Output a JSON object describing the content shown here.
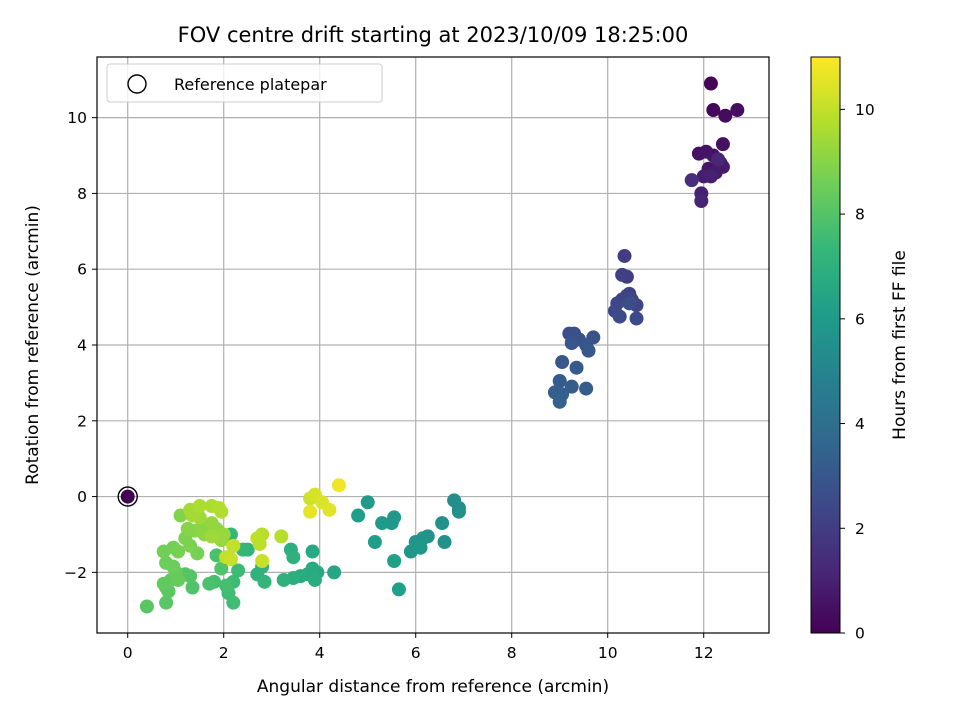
{
  "chart_data": {
    "type": "scatter",
    "title": "FOV centre drift starting at 2023/10/09 18:25:00",
    "xlabel": "Angular distance from reference (arcmin)",
    "ylabel": "Rotation from reference (arcmin)",
    "xlim": [
      -0.64,
      13.36
    ],
    "ylim": [
      -3.6,
      11.6
    ],
    "xticks": [
      0,
      2,
      4,
      6,
      8,
      10,
      12
    ],
    "yticks": [
      -2,
      0,
      2,
      4,
      6,
      8,
      10
    ],
    "grid": true,
    "legend": {
      "placement": "top-left",
      "entries": [
        "Reference platepar"
      ]
    },
    "colorbar": {
      "label": "Hours from first FF file",
      "range": [
        0,
        11
      ],
      "ticks": [
        0,
        2,
        4,
        6,
        8,
        10
      ],
      "colormap": "viridis"
    },
    "reference_point": {
      "x": 0,
      "y": 0,
      "h": 0
    },
    "points": [
      {
        "x": 12.15,
        "y": 10.9,
        "h": 0.1
      },
      {
        "x": 12.2,
        "y": 10.2,
        "h": 0.2
      },
      {
        "x": 12.45,
        "y": 10.05,
        "h": 0.3
      },
      {
        "x": 12.7,
        "y": 10.2,
        "h": 0.4
      },
      {
        "x": 12.4,
        "y": 9.3,
        "h": 0.5
      },
      {
        "x": 11.9,
        "y": 9.05,
        "h": 0.5
      },
      {
        "x": 12.05,
        "y": 9.1,
        "h": 0.6
      },
      {
        "x": 12.2,
        "y": 9.0,
        "h": 0.6
      },
      {
        "x": 12.35,
        "y": 8.8,
        "h": 0.7
      },
      {
        "x": 12.1,
        "y": 8.65,
        "h": 0.7
      },
      {
        "x": 12.25,
        "y": 8.55,
        "h": 0.8
      },
      {
        "x": 12.4,
        "y": 8.7,
        "h": 0.8
      },
      {
        "x": 12.0,
        "y": 8.45,
        "h": 0.9
      },
      {
        "x": 12.15,
        "y": 8.45,
        "h": 1.0
      },
      {
        "x": 11.95,
        "y": 8.0,
        "h": 1.0
      },
      {
        "x": 11.95,
        "y": 7.8,
        "h": 1.1
      },
      {
        "x": 12.3,
        "y": 8.9,
        "h": 1.2
      },
      {
        "x": 11.75,
        "y": 8.35,
        "h": 1.4
      },
      {
        "x": 10.35,
        "y": 6.35,
        "h": 2.0
      },
      {
        "x": 10.4,
        "y": 5.8,
        "h": 2.0
      },
      {
        "x": 10.3,
        "y": 5.85,
        "h": 2.1
      },
      {
        "x": 10.45,
        "y": 5.35,
        "h": 2.1
      },
      {
        "x": 10.3,
        "y": 5.2,
        "h": 2.2
      },
      {
        "x": 10.4,
        "y": 5.3,
        "h": 2.2
      },
      {
        "x": 10.5,
        "y": 5.2,
        "h": 2.3
      },
      {
        "x": 10.6,
        "y": 5.05,
        "h": 2.3
      },
      {
        "x": 10.2,
        "y": 5.1,
        "h": 2.4
      },
      {
        "x": 10.15,
        "y": 4.9,
        "h": 2.4
      },
      {
        "x": 10.25,
        "y": 4.75,
        "h": 2.5
      },
      {
        "x": 10.6,
        "y": 4.7,
        "h": 2.5
      },
      {
        "x": 10.45,
        "y": 5.1,
        "h": 2.6
      },
      {
        "x": 9.2,
        "y": 4.3,
        "h": 2.7
      },
      {
        "x": 9.3,
        "y": 4.3,
        "h": 2.7
      },
      {
        "x": 9.4,
        "y": 4.15,
        "h": 2.8
      },
      {
        "x": 9.7,
        "y": 4.2,
        "h": 2.8
      },
      {
        "x": 9.25,
        "y": 4.05,
        "h": 2.9
      },
      {
        "x": 9.55,
        "y": 4.0,
        "h": 2.9
      },
      {
        "x": 9.6,
        "y": 3.85,
        "h": 3.0
      },
      {
        "x": 9.05,
        "y": 3.55,
        "h": 3.0
      },
      {
        "x": 9.35,
        "y": 3.4,
        "h": 3.1
      },
      {
        "x": 9.0,
        "y": 3.05,
        "h": 3.1
      },
      {
        "x": 9.25,
        "y": 2.9,
        "h": 3.2
      },
      {
        "x": 9.55,
        "y": 2.85,
        "h": 3.2
      },
      {
        "x": 8.9,
        "y": 2.75,
        "h": 3.3
      },
      {
        "x": 9.05,
        "y": 2.7,
        "h": 3.3
      },
      {
        "x": 9.0,
        "y": 2.5,
        "h": 3.4
      },
      {
        "x": 6.8,
        "y": -0.1,
        "h": 5.4
      },
      {
        "x": 6.9,
        "y": -0.3,
        "h": 5.4
      },
      {
        "x": 6.9,
        "y": -0.4,
        "h": 5.5
      },
      {
        "x": 6.55,
        "y": -0.7,
        "h": 5.5
      },
      {
        "x": 6.6,
        "y": -1.2,
        "h": 5.6
      },
      {
        "x": 6.25,
        "y": -1.05,
        "h": 5.6
      },
      {
        "x": 6.15,
        "y": -1.1,
        "h": 5.7
      },
      {
        "x": 6.0,
        "y": -1.2,
        "h": 5.7
      },
      {
        "x": 6.1,
        "y": -1.35,
        "h": 5.8
      },
      {
        "x": 5.9,
        "y": -1.45,
        "h": 5.8
      },
      {
        "x": 5.55,
        "y": -0.55,
        "h": 5.9
      },
      {
        "x": 5.5,
        "y": -0.7,
        "h": 5.9
      },
      {
        "x": 5.3,
        "y": -0.7,
        "h": 6.0
      },
      {
        "x": 5.0,
        "y": -0.15,
        "h": 6.0
      },
      {
        "x": 4.8,
        "y": -0.5,
        "h": 6.1
      },
      {
        "x": 5.15,
        "y": -1.2,
        "h": 6.1
      },
      {
        "x": 5.55,
        "y": -1.7,
        "h": 6.2
      },
      {
        "x": 5.65,
        "y": -2.45,
        "h": 6.2
      },
      {
        "x": 4.3,
        "y": -2.0,
        "h": 6.5
      },
      {
        "x": 3.95,
        "y": -2.0,
        "h": 6.6
      },
      {
        "x": 3.85,
        "y": -1.45,
        "h": 6.6
      },
      {
        "x": 3.75,
        "y": -2.05,
        "h": 6.7
      },
      {
        "x": 3.85,
        "y": -1.9,
        "h": 6.7
      },
      {
        "x": 3.9,
        "y": -2.2,
        "h": 6.8
      },
      {
        "x": 3.6,
        "y": -2.1,
        "h": 6.8
      },
      {
        "x": 3.45,
        "y": -2.15,
        "h": 6.9
      },
      {
        "x": 3.4,
        "y": -1.4,
        "h": 6.9
      },
      {
        "x": 3.45,
        "y": -1.6,
        "h": 7.0
      },
      {
        "x": 3.25,
        "y": -2.2,
        "h": 7.0
      },
      {
        "x": 2.8,
        "y": -1.85,
        "h": 7.1
      },
      {
        "x": 2.7,
        "y": -2.05,
        "h": 7.1
      },
      {
        "x": 2.85,
        "y": -2.25,
        "h": 7.2
      },
      {
        "x": 2.5,
        "y": -1.4,
        "h": 7.2
      },
      {
        "x": 2.4,
        "y": -1.4,
        "h": 7.3
      },
      {
        "x": 2.15,
        "y": -1.0,
        "h": 7.3
      },
      {
        "x": 2.2,
        "y": -1.3,
        "h": 7.4
      },
      {
        "x": 2.3,
        "y": -1.95,
        "h": 7.5
      },
      {
        "x": 2.2,
        "y": -2.25,
        "h": 7.5
      },
      {
        "x": 2.1,
        "y": -2.55,
        "h": 7.6
      },
      {
        "x": 2.2,
        "y": -2.8,
        "h": 7.6
      },
      {
        "x": 2.05,
        "y": -2.35,
        "h": 7.7
      },
      {
        "x": 1.8,
        "y": -2.25,
        "h": 7.7
      },
      {
        "x": 1.7,
        "y": -2.3,
        "h": 7.8
      },
      {
        "x": 1.85,
        "y": -1.55,
        "h": 7.8
      },
      {
        "x": 1.95,
        "y": -1.9,
        "h": 7.9
      },
      {
        "x": 1.35,
        "y": -2.4,
        "h": 7.9
      },
      {
        "x": 1.3,
        "y": -2.1,
        "h": 8.0
      },
      {
        "x": 1.2,
        "y": -2.05,
        "h": 8.0
      },
      {
        "x": 0.4,
        "y": -2.9,
        "h": 8.1
      },
      {
        "x": 0.8,
        "y": -2.8,
        "h": 8.1
      },
      {
        "x": 0.8,
        "y": -2.4,
        "h": 8.2
      },
      {
        "x": 0.85,
        "y": -2.5,
        "h": 8.2
      },
      {
        "x": 0.75,
        "y": -2.3,
        "h": 8.3
      },
      {
        "x": 0.9,
        "y": -2.2,
        "h": 8.3
      },
      {
        "x": 1.05,
        "y": -2.2,
        "h": 8.4
      },
      {
        "x": 1.0,
        "y": -2.0,
        "h": 8.4
      },
      {
        "x": 0.8,
        "y": -1.75,
        "h": 8.5
      },
      {
        "x": 0.95,
        "y": -1.85,
        "h": 8.5
      },
      {
        "x": 0.75,
        "y": -1.45,
        "h": 8.6
      },
      {
        "x": 0.95,
        "y": -1.35,
        "h": 8.6
      },
      {
        "x": 1.05,
        "y": -1.45,
        "h": 8.7
      },
      {
        "x": 1.45,
        "y": -1.5,
        "h": 8.7
      },
      {
        "x": 1.3,
        "y": -1.3,
        "h": 8.8
      },
      {
        "x": 1.2,
        "y": -1.1,
        "h": 8.8
      },
      {
        "x": 1.1,
        "y": -0.5,
        "h": 8.9
      },
      {
        "x": 1.25,
        "y": -0.85,
        "h": 9.0
      },
      {
        "x": 1.4,
        "y": -0.9,
        "h": 9.0
      },
      {
        "x": 1.55,
        "y": -0.8,
        "h": 9.1
      },
      {
        "x": 1.6,
        "y": -1.0,
        "h": 9.1
      },
      {
        "x": 1.75,
        "y": -0.7,
        "h": 9.2
      },
      {
        "x": 1.85,
        "y": -0.85,
        "h": 9.2
      },
      {
        "x": 2.0,
        "y": -1.0,
        "h": 9.3
      },
      {
        "x": 1.95,
        "y": -1.15,
        "h": 9.3
      },
      {
        "x": 1.75,
        "y": -1.05,
        "h": 9.4
      },
      {
        "x": 1.5,
        "y": -0.55,
        "h": 9.4
      },
      {
        "x": 1.35,
        "y": -0.5,
        "h": 9.5
      },
      {
        "x": 1.3,
        "y": -0.35,
        "h": 9.5
      },
      {
        "x": 1.5,
        "y": -0.25,
        "h": 9.6
      },
      {
        "x": 1.75,
        "y": -0.25,
        "h": 9.6
      },
      {
        "x": 1.9,
        "y": -0.3,
        "h": 9.7
      },
      {
        "x": 1.95,
        "y": -0.4,
        "h": 9.7
      },
      {
        "x": 3.2,
        "y": -1.05,
        "h": 9.8
      },
      {
        "x": 2.8,
        "y": -1.0,
        "h": 9.8
      },
      {
        "x": 2.7,
        "y": -1.1,
        "h": 9.9
      },
      {
        "x": 2.75,
        "y": -1.25,
        "h": 9.9
      },
      {
        "x": 2.2,
        "y": -1.3,
        "h": 10.0
      },
      {
        "x": 2.05,
        "y": -1.6,
        "h": 10.0
      },
      {
        "x": 2.15,
        "y": -1.65,
        "h": 10.1
      },
      {
        "x": 2.8,
        "y": -1.7,
        "h": 10.1
      },
      {
        "x": 3.8,
        "y": -0.05,
        "h": 10.2
      },
      {
        "x": 3.9,
        "y": 0.05,
        "h": 10.3
      },
      {
        "x": 4.05,
        "y": -0.15,
        "h": 10.4
      },
      {
        "x": 4.2,
        "y": -0.35,
        "h": 10.5
      },
      {
        "x": 3.8,
        "y": -0.4,
        "h": 10.6
      },
      {
        "x": 4.4,
        "y": 0.3,
        "h": 10.8
      }
    ]
  }
}
